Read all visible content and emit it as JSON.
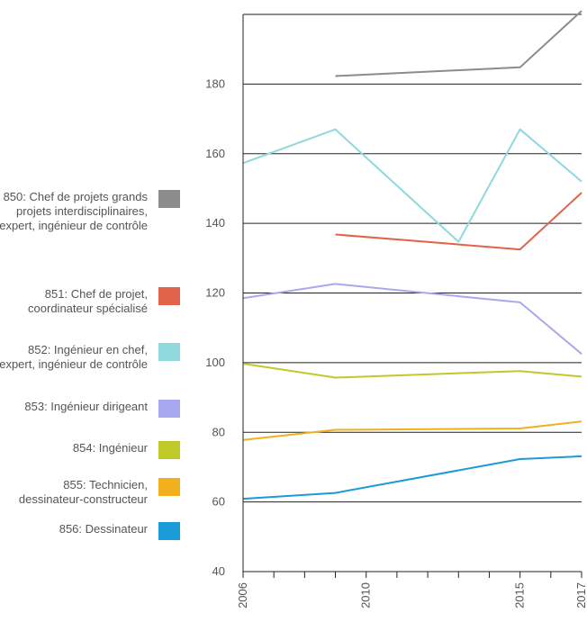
{
  "chart_data": {
    "type": "line",
    "title": "",
    "xlabel": "",
    "ylabel": "",
    "xlim": [
      2006,
      2017
    ],
    "ylim": [
      40,
      200
    ],
    "y_ticks": [
      40,
      60,
      80,
      100,
      120,
      140,
      160,
      180
    ],
    "x_tick_labels": [
      2006,
      2010,
      2015,
      2017
    ],
    "x_minor_ticks": [
      2006,
      2007,
      2008,
      2009,
      2010,
      2011,
      2012,
      2013,
      2014,
      2015,
      2016,
      2017
    ],
    "grid": true,
    "legend_position": "left",
    "series": [
      {
        "name": "850: Chef de projets grands projets interdisciplinaires, expert, ingénieur de contrôle",
        "color": "#8c8c8c",
        "points": [
          [
            2009,
            182.3
          ],
          [
            2015,
            184.8
          ],
          [
            2017,
            201
          ]
        ]
      },
      {
        "name": "851: Chef de projet, coordinateur spécialisé",
        "color": "#e0634a",
        "points": [
          [
            2009,
            136.8
          ],
          [
            2015,
            132.5
          ],
          [
            2017,
            148.8
          ]
        ]
      },
      {
        "name": "852: Ingénieur en chef, expert, ingénieur de contrôle",
        "color": "#8fd8dc",
        "points": [
          [
            2006,
            157.3
          ],
          [
            2009,
            167
          ],
          [
            2013,
            134.7
          ],
          [
            2015,
            167
          ],
          [
            2017,
            152
          ]
        ]
      },
      {
        "name": "853: Ingénieur dirigeant",
        "color": "#a8a8f0",
        "points": [
          [
            2006,
            118.5
          ],
          [
            2009,
            122.6
          ],
          [
            2015,
            117.3
          ],
          [
            2017,
            102.5
          ]
        ]
      },
      {
        "name": "854: Ingénieur",
        "color": "#bfc928",
        "points": [
          [
            2006,
            99.7
          ],
          [
            2009,
            95.7
          ],
          [
            2015,
            97.6
          ],
          [
            2017,
            96
          ]
        ]
      },
      {
        "name": "855: Technicien, dessinateur-constructeur",
        "color": "#f2b01e",
        "points": [
          [
            2006,
            77.8
          ],
          [
            2009,
            80.7
          ],
          [
            2015,
            81.1
          ],
          [
            2017,
            83.1
          ]
        ]
      },
      {
        "name": "856: Dessinateur",
        "color": "#1a9bd7",
        "points": [
          [
            2006,
            60.9
          ],
          [
            2009,
            62.6
          ],
          [
            2015,
            72.3
          ],
          [
            2017,
            73.1
          ]
        ]
      }
    ]
  },
  "legend": [
    {
      "label": "850: Chef de projets grands projets interdisciplinaires, expert, ingénieur de contrôle",
      "color": "#8c8c8c"
    },
    {
      "label": "851: Chef de projet, coordinateur spécialisé",
      "color": "#e0634a"
    },
    {
      "label": "852: Ingénieur en chef, expert, ingénieur de contrôle",
      "color": "#8fd8dc"
    },
    {
      "label": "853: Ingénieur dirigeant",
      "color": "#a8a8f0"
    },
    {
      "label": "854: Ingénieur",
      "color": "#bfc928"
    },
    {
      "label": "855: Technicien, dessinateur-constructeur",
      "color": "#f2b01e"
    },
    {
      "label": "856: Dessinateur",
      "color": "#1a9bd7"
    }
  ]
}
